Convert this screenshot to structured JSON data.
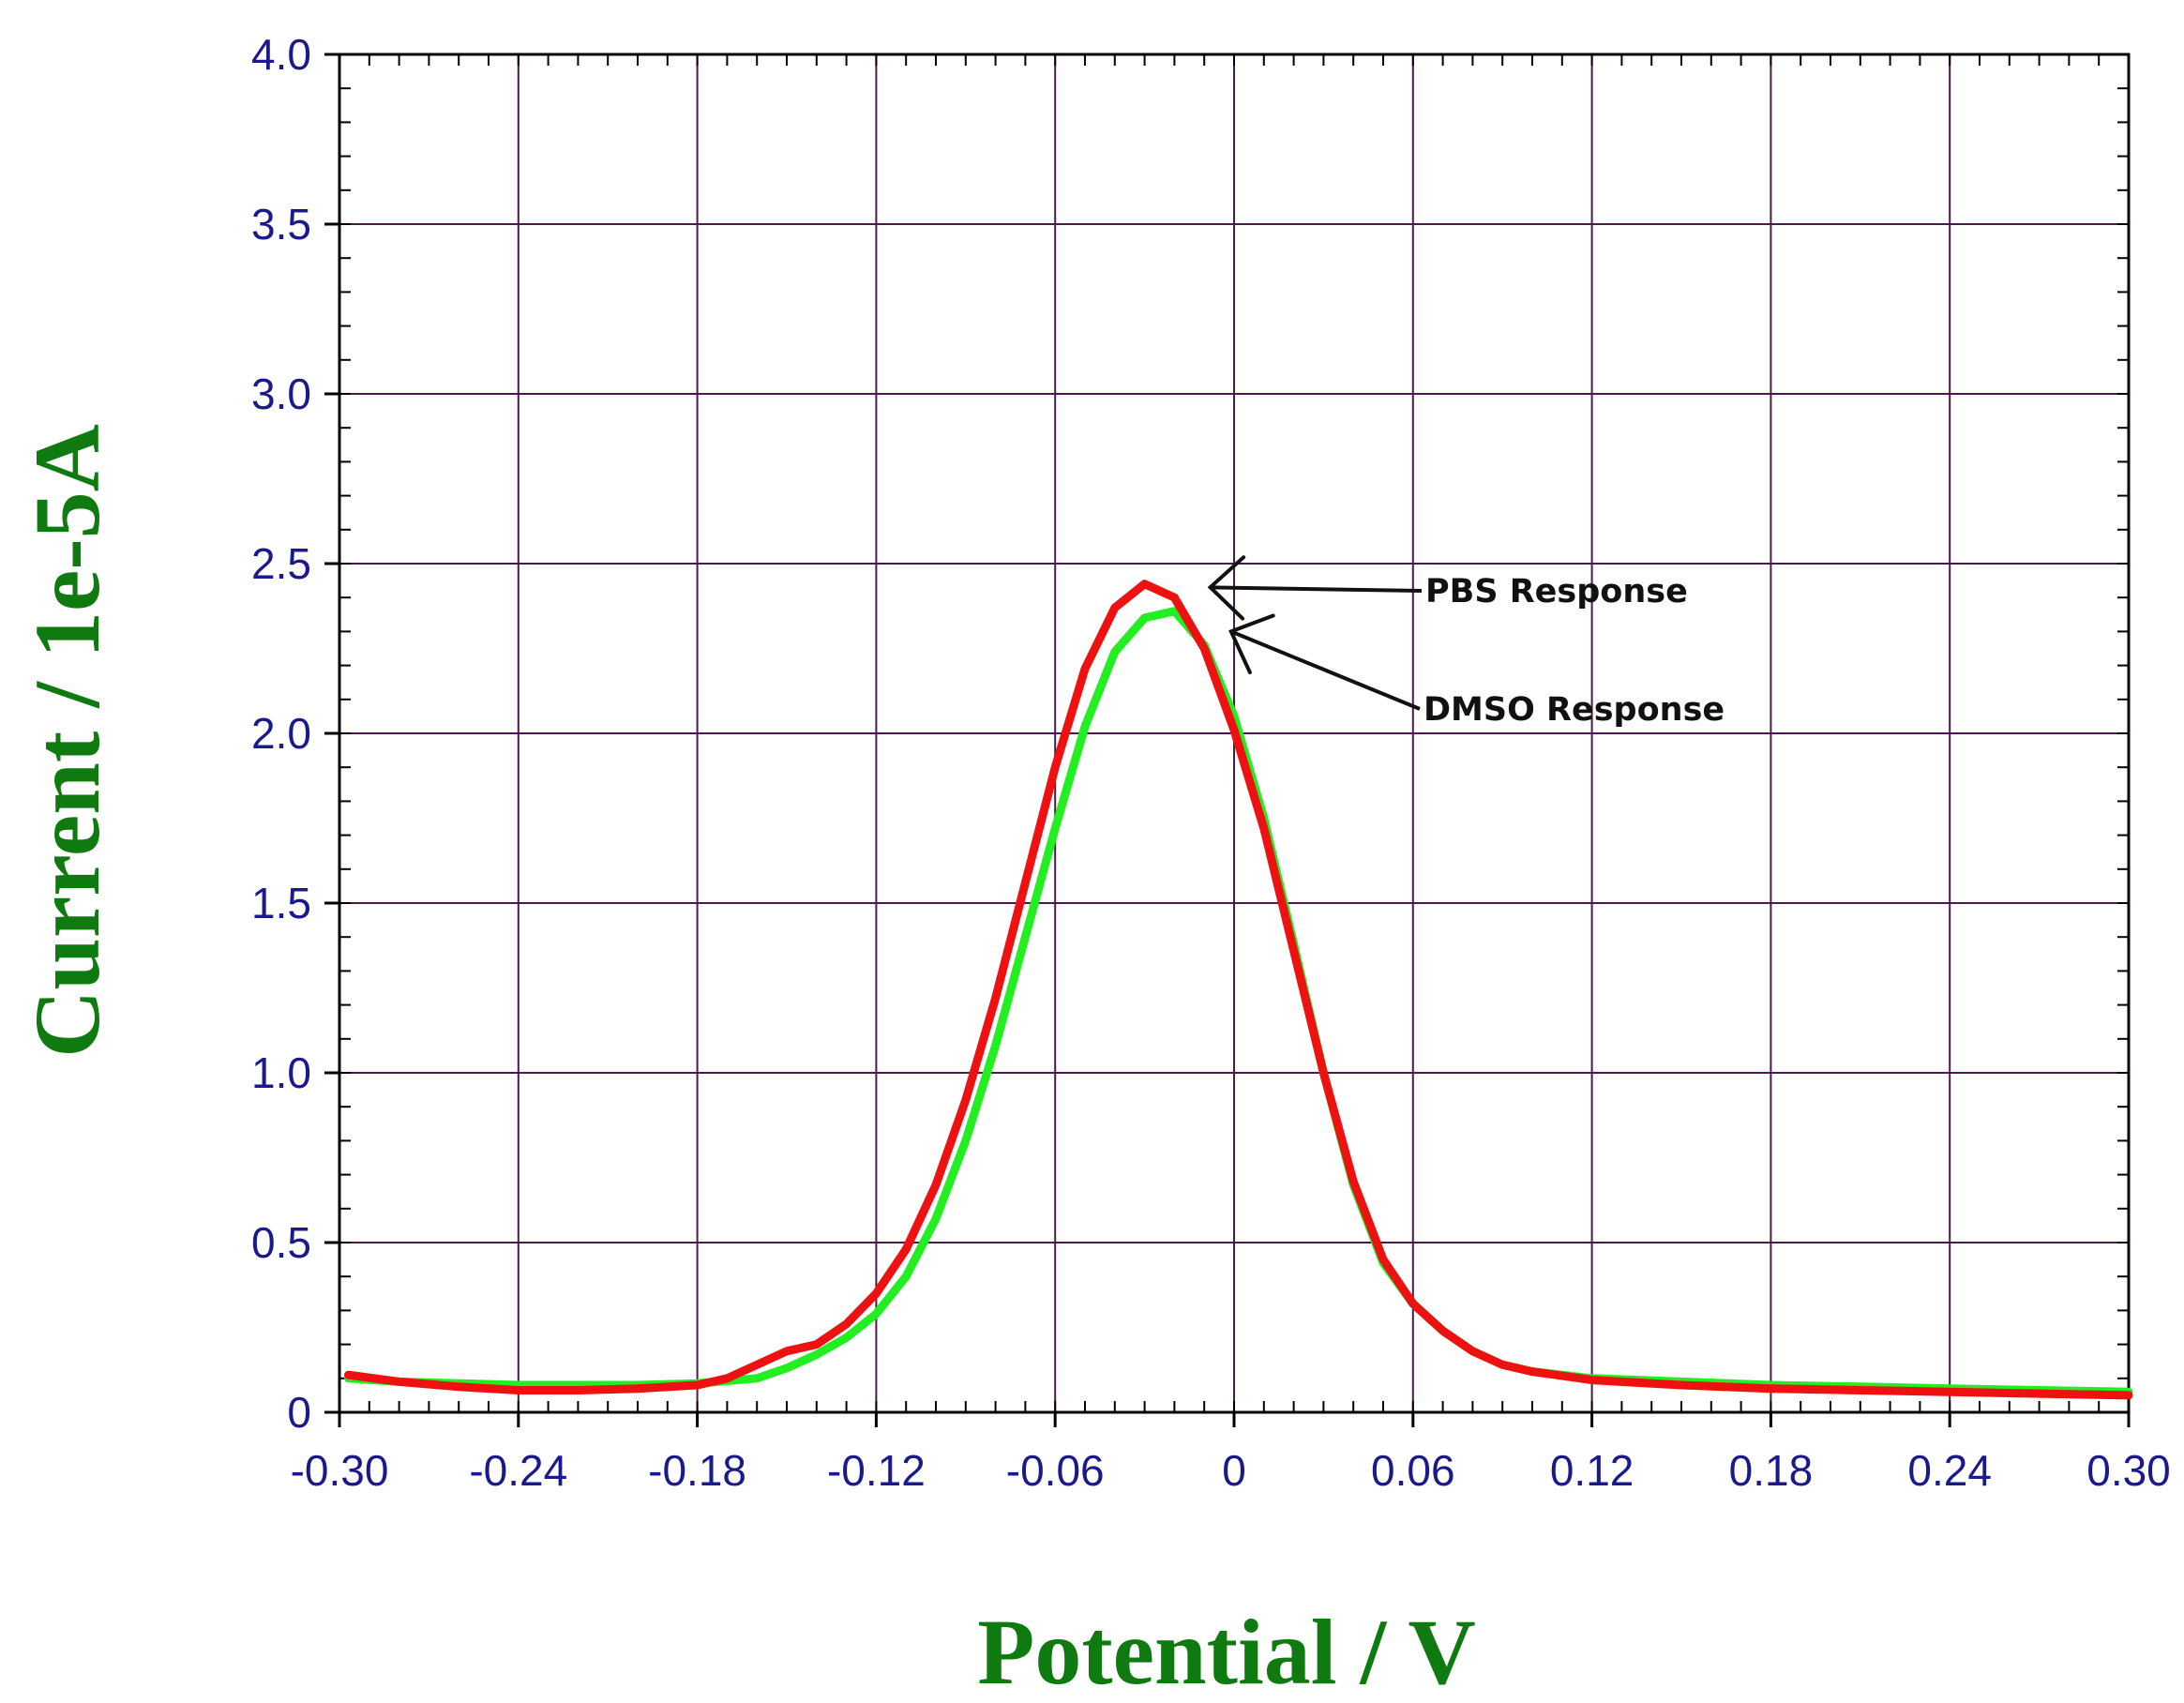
{
  "chart_data": {
    "type": "line",
    "title": "",
    "xlabel": "Potential / V",
    "ylabel": "Current / 1e-5A",
    "xlim": [
      -0.3,
      0.3
    ],
    "ylim": [
      0,
      4.0
    ],
    "x_ticks": [
      "-0.30",
      "-0.24",
      "-0.18",
      "-0.12",
      "-0.06",
      "0",
      "0.06",
      "0.12",
      "0.18",
      "0.24",
      "0.30"
    ],
    "y_ticks": [
      "0",
      "0.5",
      "1.0",
      "1.5",
      "2.0",
      "2.5",
      "3.0",
      "3.5",
      "4.0"
    ],
    "grid": true,
    "colors": {
      "grid": "#4a1a4a",
      "axis": "#000000",
      "tick_label": "#1a1a8c",
      "axis_title": "#0f7a0f",
      "annotation": "#111111"
    },
    "series": [
      {
        "name": "DMSO Response",
        "color": "#22ee22",
        "points": [
          [
            -0.297,
            0.1
          ],
          [
            -0.28,
            0.09
          ],
          [
            -0.26,
            0.085
          ],
          [
            -0.24,
            0.08
          ],
          [
            -0.22,
            0.08
          ],
          [
            -0.2,
            0.08
          ],
          [
            -0.18,
            0.085
          ],
          [
            -0.16,
            0.1
          ],
          [
            -0.15,
            0.13
          ],
          [
            -0.14,
            0.17
          ],
          [
            -0.13,
            0.22
          ],
          [
            -0.12,
            0.29
          ],
          [
            -0.11,
            0.4
          ],
          [
            -0.1,
            0.57
          ],
          [
            -0.09,
            0.8
          ],
          [
            -0.08,
            1.08
          ],
          [
            -0.07,
            1.4
          ],
          [
            -0.06,
            1.72
          ],
          [
            -0.05,
            2.02
          ],
          [
            -0.04,
            2.24
          ],
          [
            -0.03,
            2.34
          ],
          [
            -0.02,
            2.36
          ],
          [
            -0.01,
            2.26
          ],
          [
            0.0,
            2.05
          ],
          [
            0.01,
            1.75
          ],
          [
            0.02,
            1.38
          ],
          [
            0.03,
            1.0
          ],
          [
            0.04,
            0.67
          ],
          [
            0.05,
            0.44
          ],
          [
            0.06,
            0.32
          ],
          [
            0.07,
            0.24
          ],
          [
            0.08,
            0.18
          ],
          [
            0.09,
            0.14
          ],
          [
            0.1,
            0.12
          ],
          [
            0.12,
            0.1
          ],
          [
            0.15,
            0.09
          ],
          [
            0.18,
            0.08
          ],
          [
            0.21,
            0.075
          ],
          [
            0.24,
            0.07
          ],
          [
            0.27,
            0.065
          ],
          [
            0.3,
            0.06
          ]
        ]
      },
      {
        "name": "PBS Response",
        "color": "#ee1111",
        "points": [
          [
            -0.297,
            0.11
          ],
          [
            -0.28,
            0.09
          ],
          [
            -0.26,
            0.075
          ],
          [
            -0.24,
            0.065
          ],
          [
            -0.22,
            0.065
          ],
          [
            -0.2,
            0.07
          ],
          [
            -0.18,
            0.08
          ],
          [
            -0.17,
            0.1
          ],
          [
            -0.16,
            0.14
          ],
          [
            -0.15,
            0.18
          ],
          [
            -0.14,
            0.2
          ],
          [
            -0.13,
            0.26
          ],
          [
            -0.12,
            0.35
          ],
          [
            -0.11,
            0.48
          ],
          [
            -0.1,
            0.67
          ],
          [
            -0.09,
            0.92
          ],
          [
            -0.08,
            1.22
          ],
          [
            -0.07,
            1.56
          ],
          [
            -0.06,
            1.9
          ],
          [
            -0.05,
            2.19
          ],
          [
            -0.04,
            2.37
          ],
          [
            -0.03,
            2.44
          ],
          [
            -0.02,
            2.4
          ],
          [
            -0.01,
            2.25
          ],
          [
            0.0,
            2.01
          ],
          [
            0.01,
            1.72
          ],
          [
            0.02,
            1.36
          ],
          [
            0.03,
            1.0
          ],
          [
            0.04,
            0.68
          ],
          [
            0.05,
            0.45
          ],
          [
            0.06,
            0.32
          ],
          [
            0.07,
            0.24
          ],
          [
            0.08,
            0.18
          ],
          [
            0.09,
            0.14
          ],
          [
            0.1,
            0.12
          ],
          [
            0.12,
            0.095
          ],
          [
            0.15,
            0.08
          ],
          [
            0.18,
            0.07
          ],
          [
            0.21,
            0.065
          ],
          [
            0.24,
            0.06
          ],
          [
            0.27,
            0.055
          ],
          [
            0.3,
            0.05
          ]
        ]
      }
    ],
    "annotations": [
      {
        "text": "PBS Response",
        "target": [
          -0.008,
          2.43
        ]
      },
      {
        "text": "DMSO Response",
        "target": [
          -0.001,
          2.3
        ]
      }
    ]
  }
}
